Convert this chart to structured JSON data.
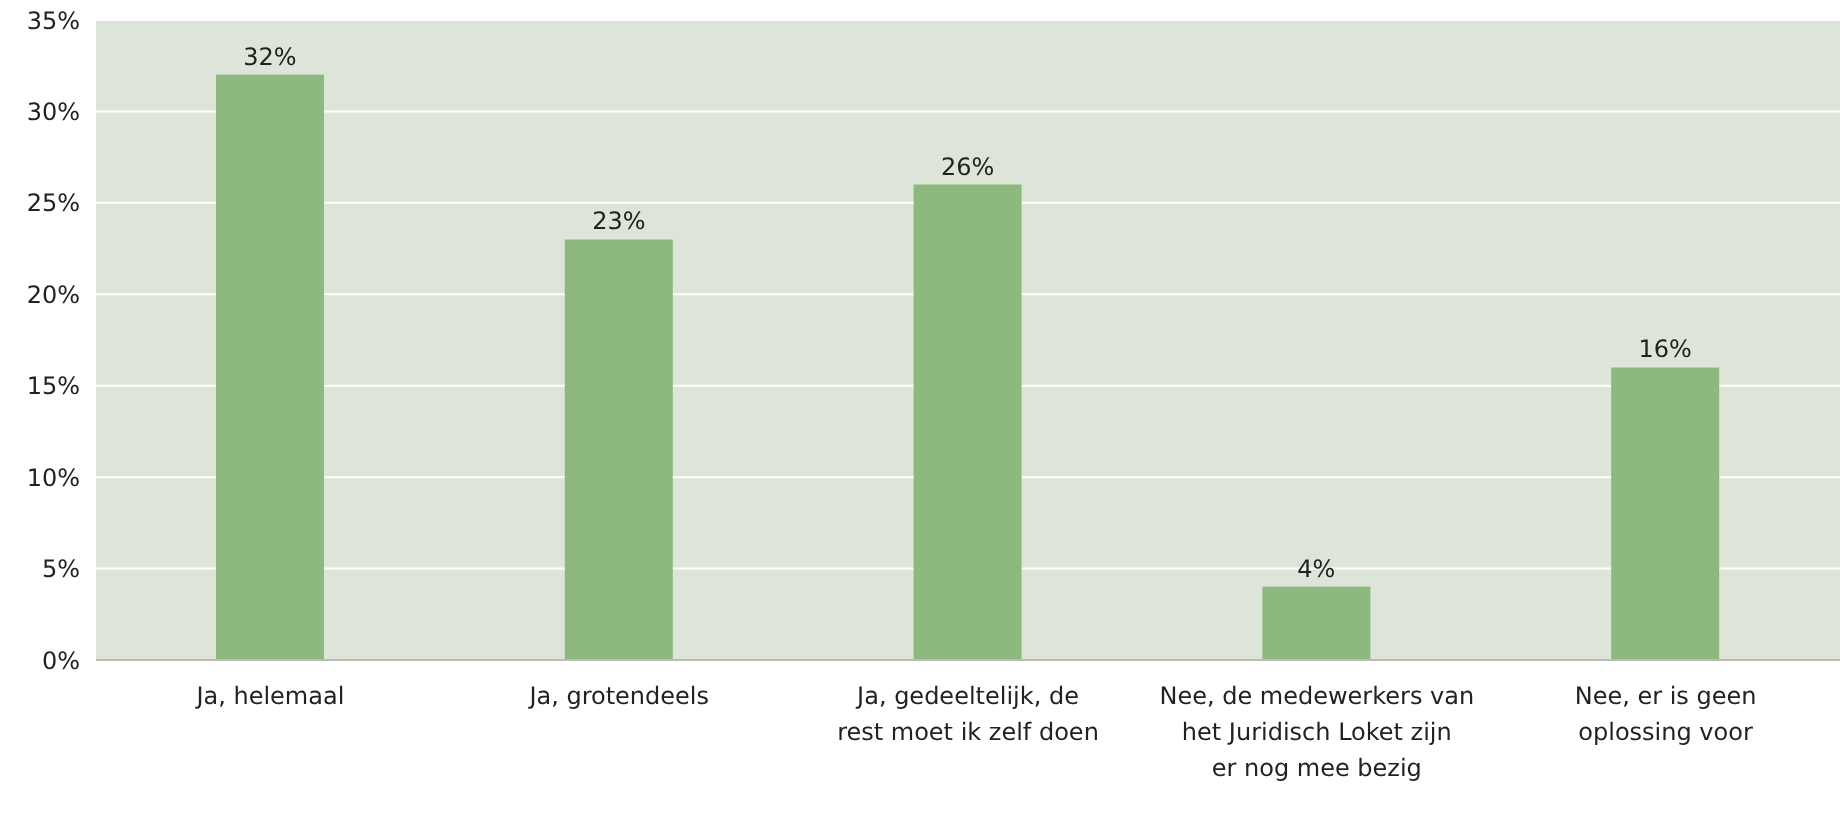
{
  "chart_data": {
    "type": "bar",
    "categories": [
      "Ja, helemaal",
      "Ja, grotendeels",
      "Ja, gedeeltelijk, de rest moet ik zelf doen",
      "Nee, de medewerkers van het Juridisch Loket zijn er nog mee bezig",
      "Nee, er is geen oplossing voor"
    ],
    "values": [
      32,
      23,
      26,
      4,
      16
    ],
    "value_labels": [
      "32%",
      "23%",
      "26%",
      "4%",
      "16%"
    ],
    "color": "#8db87e",
    "ylim": [
      0,
      35
    ],
    "yticks": [
      {
        "value": 0,
        "label": "0%"
      },
      {
        "value": 5,
        "label": "5%"
      },
      {
        "value": 10,
        "label": "10%"
      },
      {
        "value": 15,
        "label": "15%"
      },
      {
        "value": 20,
        "label": "20%"
      },
      {
        "value": 25,
        "label": "25%"
      },
      {
        "value": 30,
        "label": "30%"
      },
      {
        "value": 35,
        "label": "35%"
      }
    ],
    "grid": "y"
  }
}
